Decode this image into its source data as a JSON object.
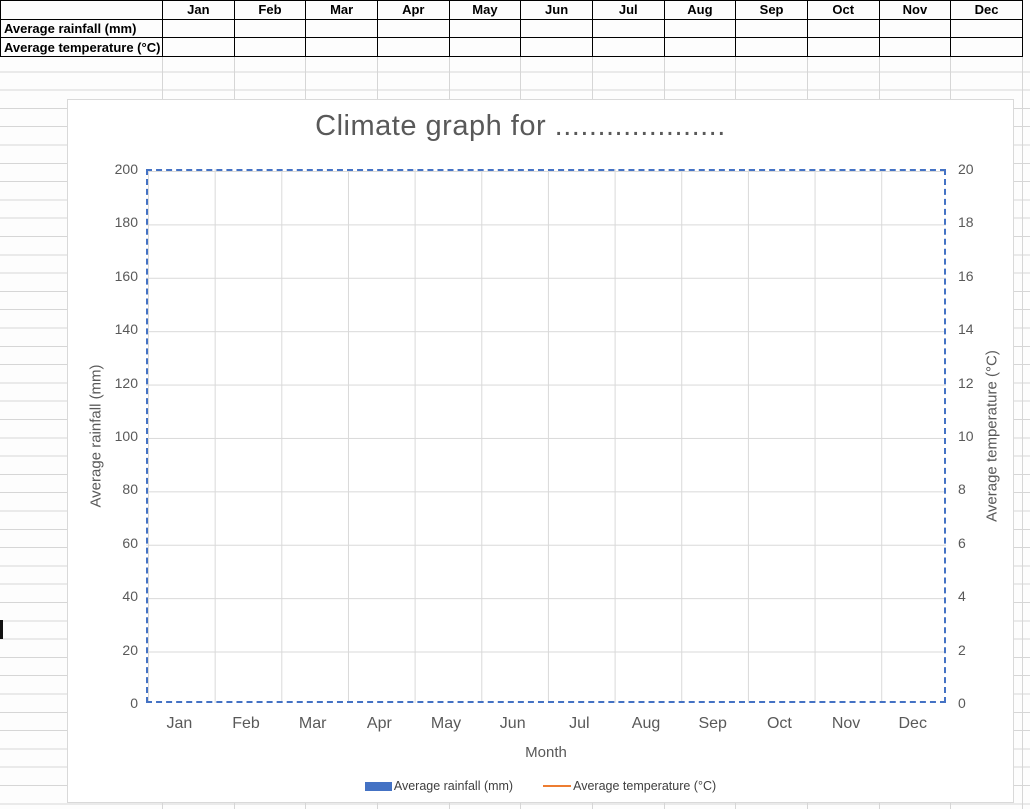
{
  "table": {
    "corner_label": "",
    "months": [
      "Jan",
      "Feb",
      "Mar",
      "Apr",
      "May",
      "Jun",
      "Jul",
      "Aug",
      "Sep",
      "Oct",
      "Nov",
      "Dec"
    ],
    "rows": [
      {
        "label": "Average rainfall (mm)",
        "values": [
          "",
          "",
          "",
          "",
          "",
          "",
          "",
          "",
          "",
          "",
          "",
          ""
        ]
      },
      {
        "label": "Average temperature (°C)",
        "values": [
          "",
          "",
          "",
          "",
          "",
          "",
          "",
          "",
          "",
          "",
          "",
          ""
        ]
      }
    ]
  },
  "chart": {
    "title": "Climate graph for ....................",
    "x_title": "Month",
    "y_left_title": "Average rainfall (mm)",
    "y_right_title": "Average temperature (°C)",
    "y_left_ticks": [
      "200",
      "180",
      "160",
      "140",
      "120",
      "100",
      "80",
      "60",
      "40",
      "20",
      "0"
    ],
    "y_right_ticks": [
      "20",
      "18",
      "16",
      "14",
      "12",
      "10",
      "8",
      "6",
      "4",
      "2",
      "0"
    ],
    "months": [
      "Jan",
      "Feb",
      "Mar",
      "Apr",
      "May",
      "Jun",
      "Jul",
      "Aug",
      "Sep",
      "Oct",
      "Nov",
      "Dec"
    ],
    "legend": [
      {
        "label": "Average rainfall (mm)",
        "marker": "bar",
        "color": "#4472c4"
      },
      {
        "label": "Average temperature (°C)",
        "marker": "line",
        "color": "#ed7d31"
      }
    ]
  },
  "chart_data": {
    "type": "bar",
    "title": "Climate graph for ....................",
    "categories": [
      "Jan",
      "Feb",
      "Mar",
      "Apr",
      "May",
      "Jun",
      "Jul",
      "Aug",
      "Sep",
      "Oct",
      "Nov",
      "Dec"
    ],
    "series": [
      {
        "name": "Average rainfall (mm)",
        "type": "bar",
        "axis": "left",
        "values": []
      },
      {
        "name": "Average temperature (°C)",
        "type": "line",
        "axis": "right",
        "values": []
      }
    ],
    "xlabel": "Month",
    "ylabel_left": "Average rainfall (mm)",
    "ylabel_right": "Average temperature (°C)",
    "ylim_left": [
      0,
      200
    ],
    "ylim_right": [
      0,
      20
    ],
    "grid": true,
    "legend_position": "bottom"
  },
  "colors": {
    "accent_blue": "#4472c4",
    "accent_orange": "#ed7d31",
    "chart_text": "#595959",
    "chart_gridline": "#d9d9d9",
    "sheet_gridline": "#d6d6d6",
    "table_border": "#000000"
  }
}
